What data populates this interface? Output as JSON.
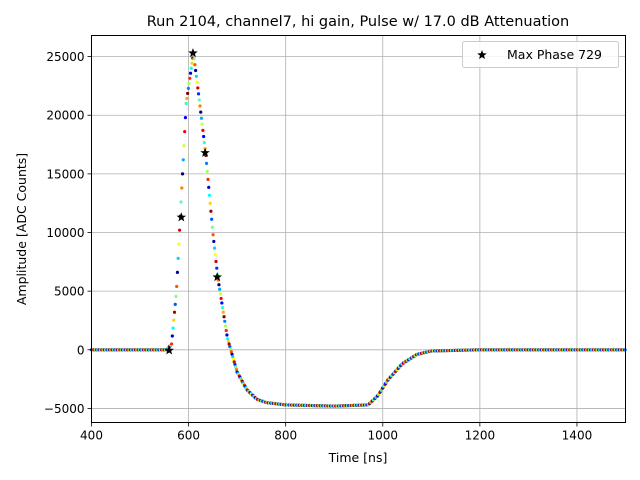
{
  "chart_data": {
    "type": "scatter",
    "title": "Run 2104, channel7, hi gain, Pulse w/ 17.0 dB Attenuation",
    "xlabel": "Time [ns]",
    "ylabel": "Amplitude [ADC Counts]",
    "xlim": [
      400,
      1500
    ],
    "ylim": [
      -6200,
      26800
    ],
    "xticks": [
      400,
      600,
      800,
      1000,
      1200,
      1400
    ],
    "xtick_labels": [
      "400",
      "600",
      "800",
      "1000",
      "1200",
      "1400"
    ],
    "yticks": [
      -5000,
      0,
      5000,
      10000,
      15000,
      20000,
      25000
    ],
    "ytick_labels": [
      "−5000",
      "0",
      "5000",
      "10000",
      "15000",
      "20000",
      "25000"
    ],
    "grid": true,
    "legend_position": "top-right",
    "colormap": "jet",
    "pulse_curve": {
      "x": [
        400,
        555,
        565,
        575,
        585,
        595,
        610,
        620,
        635,
        650,
        660,
        680,
        700,
        720,
        740,
        760,
        800,
        900,
        970,
        990,
        1010,
        1040,
        1070,
        1100,
        1200,
        1500
      ],
      "y": [
        0,
        0,
        500,
        5000,
        13000,
        21000,
        25300,
        22000,
        16800,
        10000,
        6200,
        1000,
        -1900,
        -3400,
        -4200,
        -4500,
        -4700,
        -4800,
        -4700,
        -3900,
        -2600,
        -1200,
        -400,
        -100,
        0,
        0
      ]
    },
    "series": [
      {
        "name": "Max Phase 729",
        "marker": "star",
        "color": "#000000",
        "x": [
          560,
          585,
          609,
          634,
          659
        ],
        "y": [
          -50,
          11300,
          25300,
          16800,
          6200
        ]
      }
    ]
  }
}
